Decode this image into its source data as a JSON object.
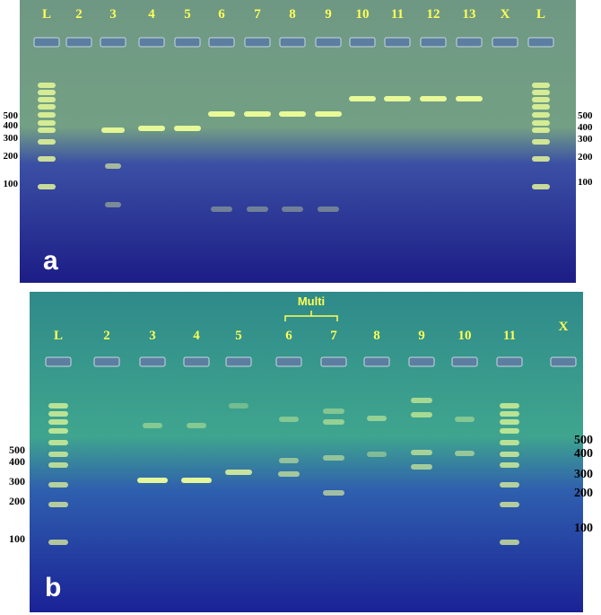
{
  "panels": [
    {
      "label": "a",
      "lanes": [
        "L",
        "2",
        "3",
        "4",
        "5",
        "6",
        "7",
        "8",
        "9",
        "10",
        "11",
        "12",
        "13",
        "X",
        "L"
      ],
      "markers_left": [
        "500",
        "400",
        "300",
        "200",
        "100"
      ],
      "markers_right": [
        "500",
        "400",
        "300",
        "200",
        "100"
      ]
    },
    {
      "label": "b",
      "annotation": "Multi",
      "lanes": [
        "L",
        "2",
        "3",
        "4",
        "5",
        "6",
        "7",
        "8",
        "9",
        "10",
        "11",
        "X"
      ],
      "markers_left": [
        "500",
        "400",
        "300",
        "200",
        "100"
      ],
      "markers_right": [
        "500",
        "400",
        "300",
        "200",
        "100"
      ]
    }
  ]
}
